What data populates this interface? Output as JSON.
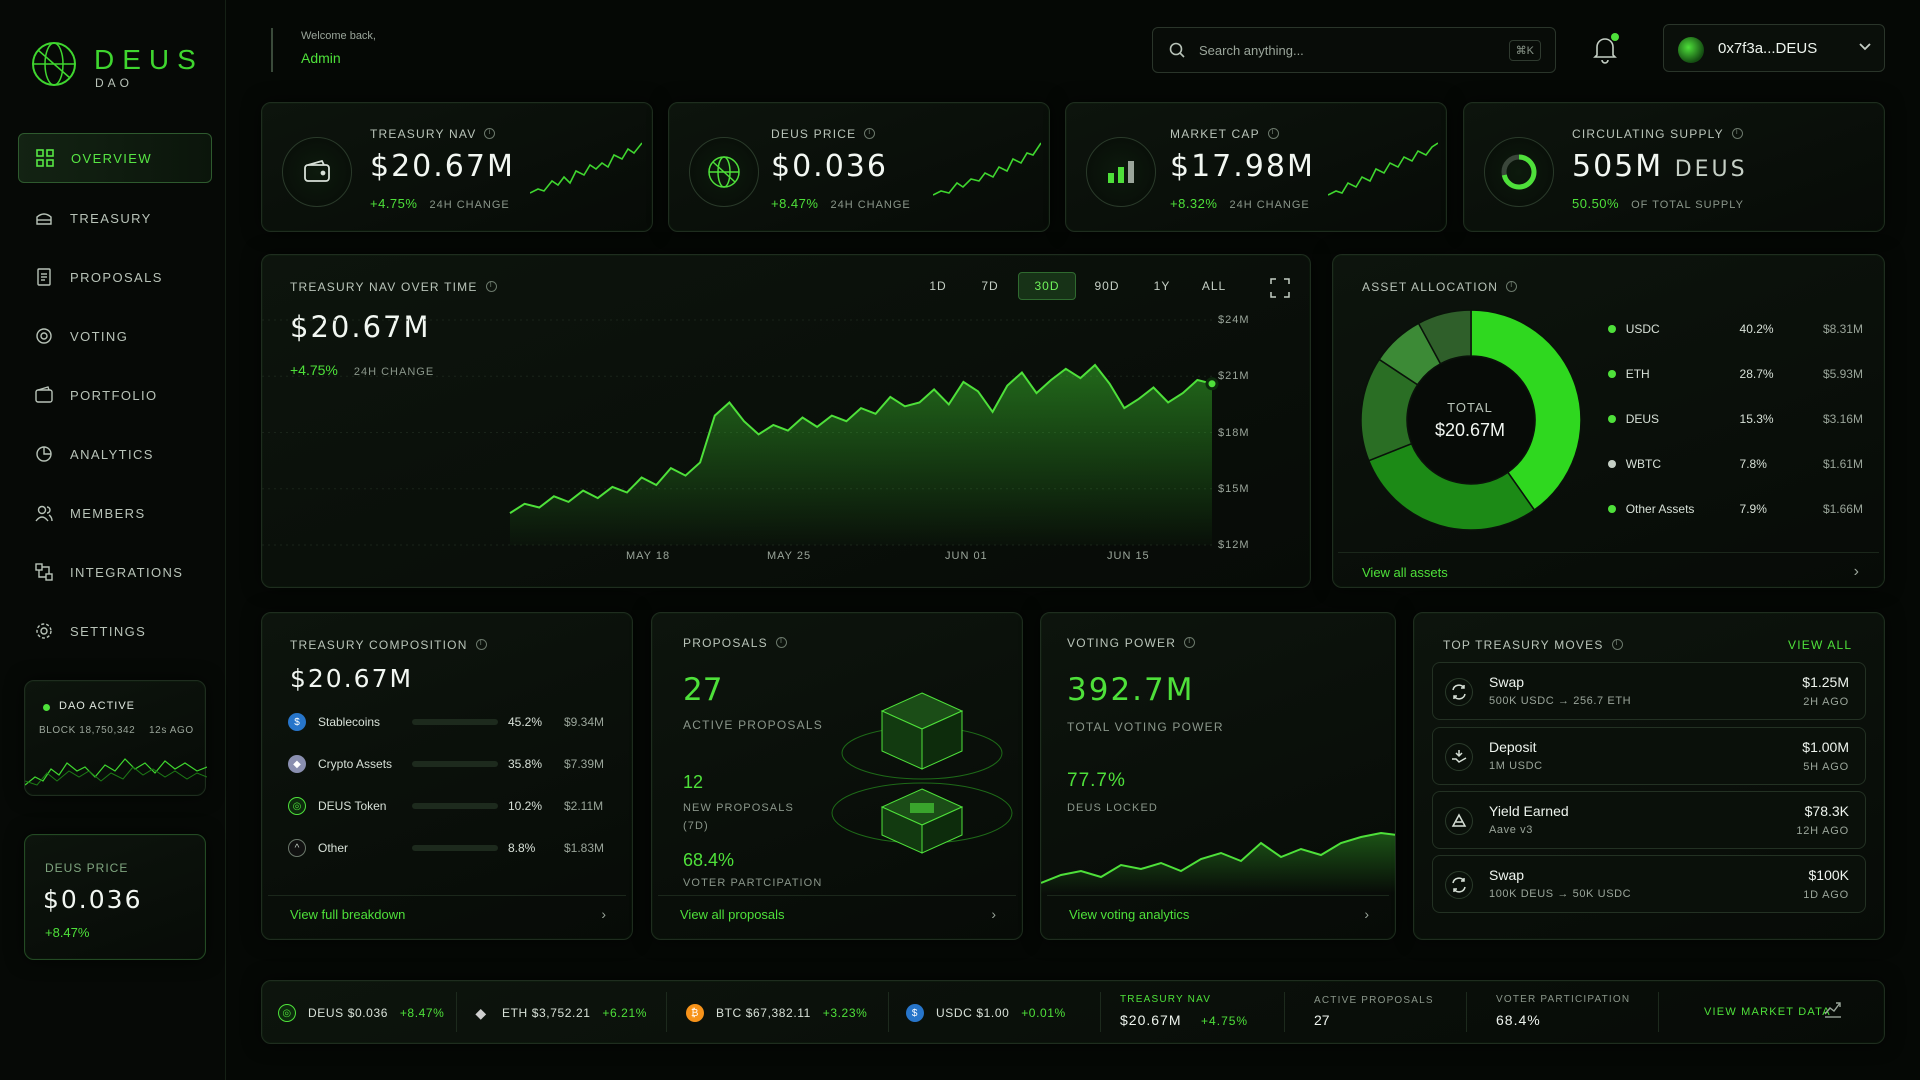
{
  "brand": {
    "name": "DEUS",
    "sub": "DAO"
  },
  "header": {
    "welcome": "Welcome back,",
    "user": "Admin"
  },
  "search": {
    "placeholder": "Search anything...",
    "shortcut": "⌘K"
  },
  "wallet": {
    "address": "0x7f3a...DEUS"
  },
  "sidebar": {
    "items": [
      {
        "label": "OVERVIEW",
        "icon": "grid-icon",
        "active": true
      },
      {
        "label": "TREASURY",
        "icon": "treasury-icon"
      },
      {
        "label": "PROPOSALS",
        "icon": "document-icon"
      },
      {
        "label": "VOTING",
        "icon": "voting-icon"
      },
      {
        "label": "PORTFOLIO",
        "icon": "wallet-icon"
      },
      {
        "label": "ANALYTICS",
        "icon": "pie-icon"
      },
      {
        "label": "MEMBERS",
        "icon": "members-icon"
      },
      {
        "label": "INTEGRATIONS",
        "icon": "integrations-icon"
      },
      {
        "label": "SETTINGS",
        "icon": "gear-icon"
      }
    ],
    "dao_status": {
      "label": "DAO ACTIVE",
      "block": "BLOCK 18,750,342",
      "ago": "12s AGO"
    },
    "price_card": {
      "label": "DEUS PRICE",
      "value": "$0.036",
      "change": "+8.47%"
    }
  },
  "stats": [
    {
      "title": "TREASURY NAV",
      "value": "$20.67M",
      "change": "+4.75%",
      "sub": "24H CHANGE",
      "icon": "wallet-icon"
    },
    {
      "title": "DEUS PRICE",
      "value": "$0.036",
      "change": "+8.47%",
      "sub": "24H CHANGE",
      "icon": "globe-icon"
    },
    {
      "title": "MARKET CAP",
      "value": "$17.98M",
      "change": "+8.32%",
      "sub": "24H CHANGE",
      "icon": "bars-icon"
    },
    {
      "title": "CIRCULATING SUPPLY",
      "value": "505M",
      "unit": "DEUS",
      "change": "50.50%",
      "sub": "OF TOTAL SUPPLY",
      "icon": "ring-icon"
    }
  ],
  "nav_chart": {
    "title": "TREASURY NAV OVER TIME",
    "value": "$20.67M",
    "change": "+4.75%",
    "sub": "24H CHANGE",
    "ranges": [
      "1D",
      "7D",
      "30D",
      "90D",
      "1Y",
      "ALL"
    ],
    "active_range": "30D"
  },
  "chart_data": {
    "type": "area",
    "x_ticks": [
      "MAY 18",
      "MAY 25",
      "JUN 01",
      "JUN 15"
    ],
    "y_ticks": [
      "$24M",
      "$21M",
      "$18M",
      "$15M",
      "$12M"
    ],
    "ylim": [
      12,
      24
    ],
    "series": [
      {
        "values": [
          13.7,
          14.2,
          14.0,
          14.6,
          14.3,
          14.9,
          14.5,
          15.1,
          14.8,
          15.6,
          15.2,
          16.1,
          15.7,
          16.4,
          18.9,
          19.6,
          18.6,
          17.9,
          18.4,
          18.1,
          18.8,
          18.3,
          18.9,
          18.6,
          19.3,
          19.0,
          19.9,
          19.4,
          19.6,
          20.3,
          19.5,
          20.7,
          20.2,
          19.1,
          20.5,
          21.2,
          20.1,
          20.8,
          21.4,
          20.9,
          21.6,
          20.6,
          19.3,
          19.8,
          20.4,
          19.6,
          20.1,
          20.8,
          20.6
        ]
      }
    ]
  },
  "allocation": {
    "title": "ASSET ALLOCATION",
    "center_label": "TOTAL",
    "center_value": "$20.67M",
    "items": [
      {
        "name": "USDC",
        "pct": "40.2%",
        "value": "$8.31M",
        "share": 40.2,
        "color": "#2fd81f"
      },
      {
        "name": "ETH",
        "pct": "28.7%",
        "value": "$5.93M",
        "share": 28.7,
        "color": "#1c8a16"
      },
      {
        "name": "DEUS",
        "pct": "15.3%",
        "value": "$3.16M",
        "share": 15.3,
        "color": "#2a6e24"
      },
      {
        "name": "WBTC",
        "pct": "7.8%",
        "value": "$1.61M",
        "share": 7.8,
        "color": "#3c8a36"
      },
      {
        "name": "Other Assets",
        "pct": "7.9%",
        "value": "$1.66M",
        "share": 7.9,
        "color": "#2f5f2a"
      }
    ],
    "footer": "View all assets"
  },
  "composition": {
    "title": "TREASURY COMPOSITION",
    "value": "$20.67M",
    "items": [
      {
        "name": "Stablecoins",
        "pct": "45.2%",
        "value": "$9.34M",
        "share": 45.2
      },
      {
        "name": "Crypto Assets",
        "pct": "35.8%",
        "value": "$7.39M",
        "share": 35.8
      },
      {
        "name": "DEUS Token",
        "pct": "10.2%",
        "value": "$2.11M",
        "share": 10.2
      },
      {
        "name": "Other",
        "pct": "8.8%",
        "value": "$1.83M",
        "share": 8.8
      }
    ],
    "footer": "View full breakdown"
  },
  "proposals": {
    "title": "PROPOSALS",
    "active": "27",
    "active_label": "ACTIVE PROPOSALS",
    "new": "12",
    "new_label": "NEW PROPOSALS",
    "new_sub": "(7D)",
    "participation": "68.4%",
    "participation_label": "VOTER PARTCIPATION",
    "footer": "View all proposals"
  },
  "voting": {
    "title": "VOTING POWER",
    "value": "392.7M",
    "value_label": "TOTAL VOTING POWER",
    "locked": "77.7%",
    "locked_label": "DEUS LOCKED",
    "footer": "View voting analytics"
  },
  "moves": {
    "title": "TOP TREASURY MOVES",
    "view_all": "VIEW ALL",
    "items": [
      {
        "title": "Swap",
        "sub": "500K USDC → 256.7 ETH",
        "amount": "$1.25M",
        "time": "2H AGO",
        "icon": "swap-icon"
      },
      {
        "title": "Deposit",
        "sub": "1M USDC",
        "amount": "$1.00M",
        "time": "5H AGO",
        "icon": "deposit-icon"
      },
      {
        "title": "Yield Earned",
        "sub": "Aave v3",
        "amount": "$78.3K",
        "time": "12H AGO",
        "icon": "yield-icon"
      },
      {
        "title": "Swap",
        "sub": "100K DEUS → 50K USDC",
        "amount": "$100K",
        "time": "1D AGO",
        "icon": "swap-icon"
      }
    ]
  },
  "ticker": {
    "coins": [
      {
        "sym": "DEUS",
        "price": "$0.036",
        "change": "+8.47%",
        "color": "#2fd81f"
      },
      {
        "sym": "ETH",
        "price": "$3,752.21",
        "change": "+6.21%",
        "color": "#cfcfcf"
      },
      {
        "sym": "BTC",
        "price": "$67,382.11",
        "change": "+3.23%",
        "color": "#f7931a"
      },
      {
        "sym": "USDC",
        "price": "$1.00",
        "change": "+0.01%",
        "color": "#2775ca"
      }
    ],
    "nav_label": "TREASURY NAV",
    "nav_value": "$20.67M",
    "nav_change": "+4.75%",
    "ap_label": "ACTIVE PROPOSALS",
    "ap_value": "27",
    "vp_label": "VOTER PARTICIPATION",
    "vp_value": "68.4%",
    "market_link": "VIEW MARKET DATA"
  }
}
